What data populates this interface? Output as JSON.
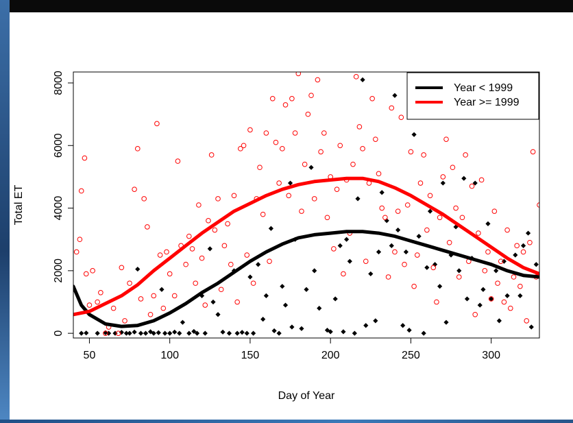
{
  "chart_data": {
    "type": "scatter",
    "title": "",
    "xlabel": "Day of Year",
    "ylabel": "Total ET",
    "xlim": [
      40,
      330
    ],
    "ylim": [
      -150,
      8350
    ],
    "xticks": [
      50,
      100,
      150,
      200,
      250,
      300
    ],
    "yticks": [
      0,
      2000,
      4000,
      6000,
      8000
    ],
    "grid": false,
    "legend_position": "top-right",
    "series": [
      {
        "name": "Year < 1999",
        "color": "#000000",
        "marker": "filled-diamond",
        "points": [
          [
            45,
            0
          ],
          [
            48,
            10
          ],
          [
            55,
            0
          ],
          [
            60,
            20
          ],
          [
            62,
            0
          ],
          [
            66,
            0
          ],
          [
            70,
            30
          ],
          [
            73,
            0
          ],
          [
            75,
            0
          ],
          [
            78,
            40
          ],
          [
            80,
            2050
          ],
          [
            82,
            0
          ],
          [
            85,
            0
          ],
          [
            88,
            50
          ],
          [
            90,
            0
          ],
          [
            93,
            20
          ],
          [
            95,
            1400
          ],
          [
            97,
            0
          ],
          [
            100,
            0
          ],
          [
            103,
            40
          ],
          [
            106,
            0
          ],
          [
            108,
            350
          ],
          [
            112,
            0
          ],
          [
            115,
            60
          ],
          [
            117,
            0
          ],
          [
            120,
            1200
          ],
          [
            122,
            0
          ],
          [
            125,
            2700
          ],
          [
            127,
            1000
          ],
          [
            130,
            600
          ],
          [
            133,
            40
          ],
          [
            137,
            0
          ],
          [
            140,
            2000
          ],
          [
            142,
            0
          ],
          [
            145,
            30
          ],
          [
            148,
            0
          ],
          [
            150,
            1800
          ],
          [
            152,
            0
          ],
          [
            155,
            2200
          ],
          [
            158,
            450
          ],
          [
            160,
            1200
          ],
          [
            163,
            3350
          ],
          [
            165,
            80
          ],
          [
            168,
            0
          ],
          [
            170,
            1500
          ],
          [
            172,
            900
          ],
          [
            175,
            4800
          ],
          [
            176,
            200
          ],
          [
            178,
            3000
          ],
          [
            182,
            150
          ],
          [
            185,
            1400
          ],
          [
            188,
            5300
          ],
          [
            190,
            2000
          ],
          [
            193,
            800
          ],
          [
            198,
            100
          ],
          [
            200,
            50
          ],
          [
            203,
            1100
          ],
          [
            206,
            2800
          ],
          [
            208,
            50
          ],
          [
            210,
            3000
          ],
          [
            212,
            2300
          ],
          [
            215,
            0
          ],
          [
            217,
            4300
          ],
          [
            220,
            8100
          ],
          [
            222,
            250
          ],
          [
            225,
            1900
          ],
          [
            228,
            400
          ],
          [
            230,
            2600
          ],
          [
            232,
            4500
          ],
          [
            235,
            3600
          ],
          [
            238,
            2800
          ],
          [
            240,
            7600
          ],
          [
            242,
            3300
          ],
          [
            245,
            250
          ],
          [
            247,
            2600
          ],
          [
            249,
            100
          ],
          [
            252,
            6350
          ],
          [
            255,
            3100
          ],
          [
            258,
            0
          ],
          [
            260,
            2100
          ],
          [
            262,
            3900
          ],
          [
            265,
            2200
          ],
          [
            268,
            1500
          ],
          [
            270,
            4800
          ],
          [
            272,
            350
          ],
          [
            275,
            2500
          ],
          [
            278,
            3400
          ],
          [
            280,
            2000
          ],
          [
            283,
            4950
          ],
          [
            285,
            1100
          ],
          [
            288,
            2400
          ],
          [
            290,
            4800
          ],
          [
            293,
            900
          ],
          [
            295,
            1400
          ],
          [
            298,
            3500
          ],
          [
            300,
            1100
          ],
          [
            303,
            2000
          ],
          [
            305,
            400
          ],
          [
            308,
            2300
          ],
          [
            310,
            1200
          ],
          [
            315,
            2500
          ],
          [
            318,
            1200
          ],
          [
            320,
            2800
          ],
          [
            323,
            3200
          ],
          [
            325,
            200
          ],
          [
            328,
            2200
          ]
        ],
        "curve": [
          [
            40,
            1500
          ],
          [
            45,
            900
          ],
          [
            50,
            600
          ],
          [
            60,
            300
          ],
          [
            70,
            220
          ],
          [
            80,
            250
          ],
          [
            90,
            400
          ],
          [
            100,
            650
          ],
          [
            110,
            950
          ],
          [
            120,
            1300
          ],
          [
            130,
            1600
          ],
          [
            140,
            1950
          ],
          [
            150,
            2300
          ],
          [
            160,
            2600
          ],
          [
            170,
            2850
          ],
          [
            180,
            3050
          ],
          [
            190,
            3150
          ],
          [
            200,
            3200
          ],
          [
            210,
            3250
          ],
          [
            220,
            3250
          ],
          [
            230,
            3200
          ],
          [
            240,
            3100
          ],
          [
            250,
            2950
          ],
          [
            260,
            2800
          ],
          [
            270,
            2650
          ],
          [
            280,
            2500
          ],
          [
            290,
            2350
          ],
          [
            300,
            2200
          ],
          [
            310,
            2000
          ],
          [
            320,
            1850
          ],
          [
            330,
            1800
          ]
        ]
      },
      {
        "name": "Year >= 1999",
        "color": "#ff0000",
        "marker": "open-circle",
        "points": [
          [
            42,
            2600
          ],
          [
            44,
            3000
          ],
          [
            45,
            4550
          ],
          [
            47,
            5600
          ],
          [
            48,
            1900
          ],
          [
            50,
            900
          ],
          [
            52,
            2000
          ],
          [
            55,
            1000
          ],
          [
            57,
            1300
          ],
          [
            60,
            0
          ],
          [
            62,
            200
          ],
          [
            65,
            800
          ],
          [
            68,
            0
          ],
          [
            70,
            2100
          ],
          [
            72,
            400
          ],
          [
            75,
            1600
          ],
          [
            78,
            4600
          ],
          [
            80,
            5900
          ],
          [
            82,
            1100
          ],
          [
            84,
            4300
          ],
          [
            86,
            3400
          ],
          [
            88,
            600
          ],
          [
            90,
            1200
          ],
          [
            92,
            6700
          ],
          [
            94,
            2500
          ],
          [
            96,
            800
          ],
          [
            98,
            2600
          ],
          [
            100,
            1900
          ],
          [
            103,
            1200
          ],
          [
            105,
            5500
          ],
          [
            107,
            2800
          ],
          [
            110,
            2200
          ],
          [
            112,
            3100
          ],
          [
            114,
            2700
          ],
          [
            116,
            1600
          ],
          [
            118,
            4100
          ],
          [
            120,
            2400
          ],
          [
            122,
            900
          ],
          [
            124,
            3600
          ],
          [
            126,
            5700
          ],
          [
            128,
            3300
          ],
          [
            130,
            4300
          ],
          [
            132,
            1400
          ],
          [
            134,
            2800
          ],
          [
            136,
            3500
          ],
          [
            138,
            2200
          ],
          [
            140,
            4400
          ],
          [
            142,
            1000
          ],
          [
            144,
            5900
          ],
          [
            146,
            6000
          ],
          [
            148,
            2500
          ],
          [
            150,
            6500
          ],
          [
            152,
            1600
          ],
          [
            154,
            4300
          ],
          [
            156,
            5300
          ],
          [
            158,
            3800
          ],
          [
            160,
            6400
          ],
          [
            162,
            2300
          ],
          [
            164,
            7500
          ],
          [
            166,
            6100
          ],
          [
            168,
            4800
          ],
          [
            170,
            5900
          ],
          [
            172,
            7300
          ],
          [
            174,
            4400
          ],
          [
            176,
            7500
          ],
          [
            178,
            6400
          ],
          [
            180,
            8300
          ],
          [
            182,
            3900
          ],
          [
            184,
            5400
          ],
          [
            186,
            7000
          ],
          [
            188,
            7600
          ],
          [
            190,
            4300
          ],
          [
            192,
            8100
          ],
          [
            194,
            5800
          ],
          [
            196,
            6400
          ],
          [
            198,
            3700
          ],
          [
            200,
            5000
          ],
          [
            202,
            2700
          ],
          [
            204,
            4600
          ],
          [
            206,
            6000
          ],
          [
            208,
            1900
          ],
          [
            210,
            4900
          ],
          [
            212,
            3200
          ],
          [
            214,
            5400
          ],
          [
            216,
            8200
          ],
          [
            218,
            6600
          ],
          [
            220,
            5900
          ],
          [
            222,
            2300
          ],
          [
            224,
            4800
          ],
          [
            226,
            7500
          ],
          [
            228,
            6200
          ],
          [
            230,
            5100
          ],
          [
            232,
            4000
          ],
          [
            234,
            3700
          ],
          [
            236,
            1800
          ],
          [
            238,
            7200
          ],
          [
            240,
            2600
          ],
          [
            242,
            3900
          ],
          [
            244,
            6900
          ],
          [
            246,
            2200
          ],
          [
            248,
            4100
          ],
          [
            250,
            5800
          ],
          [
            252,
            1500
          ],
          [
            254,
            2500
          ],
          [
            256,
            4800
          ],
          [
            258,
            5700
          ],
          [
            260,
            3300
          ],
          [
            262,
            4400
          ],
          [
            264,
            2100
          ],
          [
            266,
            1000
          ],
          [
            268,
            3700
          ],
          [
            270,
            5000
          ],
          [
            272,
            6200
          ],
          [
            274,
            2900
          ],
          [
            276,
            5300
          ],
          [
            278,
            4000
          ],
          [
            280,
            1800
          ],
          [
            282,
            3700
          ],
          [
            284,
            5700
          ],
          [
            286,
            2300
          ],
          [
            288,
            4700
          ],
          [
            290,
            600
          ],
          [
            292,
            3200
          ],
          [
            294,
            4900
          ],
          [
            296,
            2000
          ],
          [
            298,
            2600
          ],
          [
            300,
            1100
          ],
          [
            302,
            3900
          ],
          [
            304,
            1600
          ],
          [
            306,
            2300
          ],
          [
            308,
            1000
          ],
          [
            310,
            3300
          ],
          [
            312,
            800
          ],
          [
            314,
            1800
          ],
          [
            316,
            2800
          ],
          [
            318,
            1500
          ],
          [
            320,
            2600
          ],
          [
            322,
            400
          ],
          [
            324,
            2900
          ],
          [
            326,
            5800
          ],
          [
            328,
            1800
          ],
          [
            330,
            4100
          ]
        ],
        "curve": [
          [
            40,
            600
          ],
          [
            50,
            700
          ],
          [
            60,
            950
          ],
          [
            70,
            1200
          ],
          [
            80,
            1550
          ],
          [
            90,
            2000
          ],
          [
            100,
            2400
          ],
          [
            110,
            2800
          ],
          [
            120,
            3200
          ],
          [
            130,
            3550
          ],
          [
            140,
            3900
          ],
          [
            150,
            4150
          ],
          [
            160,
            4400
          ],
          [
            170,
            4600
          ],
          [
            180,
            4750
          ],
          [
            190,
            4850
          ],
          [
            200,
            4900
          ],
          [
            210,
            4950
          ],
          [
            220,
            4950
          ],
          [
            230,
            4850
          ],
          [
            240,
            4650
          ],
          [
            250,
            4400
          ],
          [
            260,
            4100
          ],
          [
            270,
            3800
          ],
          [
            280,
            3450
          ],
          [
            290,
            3100
          ],
          [
            300,
            2750
          ],
          [
            310,
            2400
          ],
          [
            320,
            2100
          ],
          [
            330,
            1900
          ]
        ]
      }
    ]
  }
}
